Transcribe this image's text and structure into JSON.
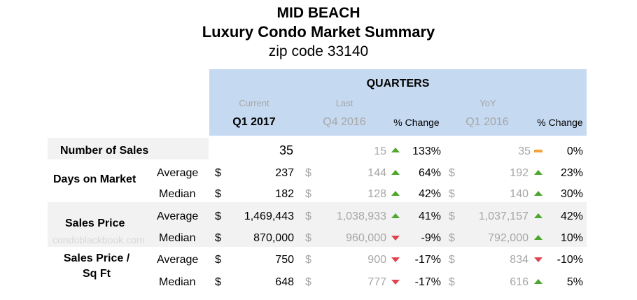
{
  "title": {
    "line1": "MID BEACH",
    "line2": "Luxury Condo Market Summary",
    "line3": "zip code 33140"
  },
  "header": {
    "quarters": "QUARTERS",
    "current_label": "Current",
    "last_label": "Last",
    "yoy_label": "YoY",
    "current_period": "Q1 2017",
    "last_period": "Q4 2016",
    "yoy_period": "Q1 2016",
    "pct_change_label": "% Change"
  },
  "currency": "$",
  "watermark": "condoblackbook.com",
  "colors": {
    "header_bg": "#c5d9f1",
    "band_bg": "#f2f2f2",
    "up": "#4ea72e",
    "down": "#e0434d",
    "flat": "#f2a33c"
  },
  "sections": {
    "sales": {
      "label": "Number of Sales",
      "current": "35",
      "last": "15",
      "last_trend": "up",
      "last_change": "133%",
      "yoy": "35",
      "yoy_trend": "flat",
      "yoy_change": "0%"
    },
    "dom": {
      "label": "Days on Market",
      "average": {
        "label": "Average",
        "current": "237",
        "last": "144",
        "last_trend": "up",
        "last_change": "64%",
        "yoy": "192",
        "yoy_trend": "up",
        "yoy_change": "23%"
      },
      "median": {
        "label": "Median",
        "current": "182",
        "last": "128",
        "last_trend": "up",
        "last_change": "42%",
        "yoy": "140",
        "yoy_trend": "up",
        "yoy_change": "30%"
      }
    },
    "price": {
      "label": "Sales Price",
      "average": {
        "label": "Average",
        "current": "1,469,443",
        "last": "1,038,933",
        "last_trend": "up",
        "last_change": "41%",
        "yoy": "1,037,157",
        "yoy_trend": "up",
        "yoy_change": "42%"
      },
      "median": {
        "label": "Median",
        "current": "870,000",
        "last": "960,000",
        "last_trend": "down",
        "last_change": "-9%",
        "yoy": "792,000",
        "yoy_trend": "up",
        "yoy_change": "10%"
      }
    },
    "sqft": {
      "label_line1": "Sales Price /",
      "label_line2": "Sq Ft",
      "average": {
        "label": "Average",
        "current": "750",
        "last": "900",
        "last_trend": "down",
        "last_change": "-17%",
        "yoy": "834",
        "yoy_trend": "down",
        "yoy_change": "-10%"
      },
      "median": {
        "label": "Median",
        "current": "648",
        "last": "777",
        "last_trend": "down",
        "last_change": "-17%",
        "yoy": "616",
        "yoy_trend": "up",
        "yoy_change": "5%"
      }
    }
  }
}
